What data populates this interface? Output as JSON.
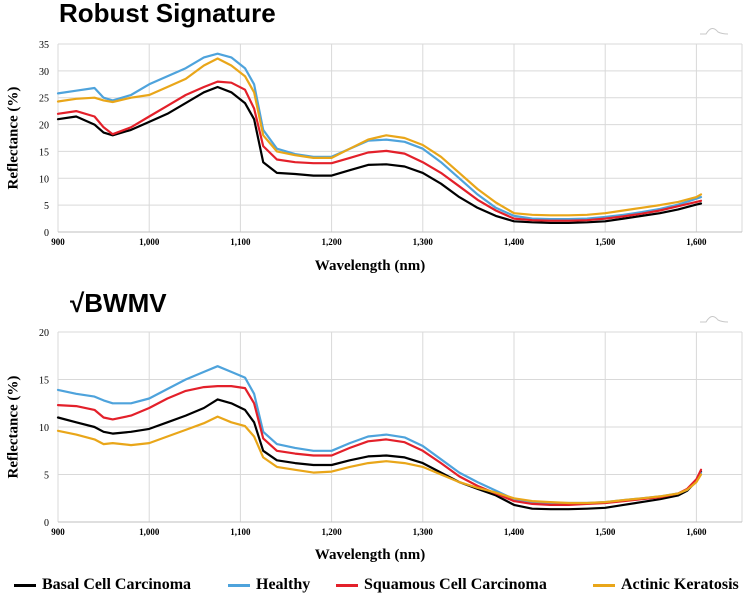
{
  "chart_data": [
    {
      "type": "line",
      "title": "Robust Signature",
      "xlabel": "Wavelength (nm)",
      "ylabel": "Reflectance (%)",
      "xlim": [
        900,
        1650
      ],
      "ylim": [
        0,
        35
      ],
      "xticks": [
        "900",
        "1,000",
        "1,100",
        "1,200",
        "1,300",
        "1,400",
        "1,500",
        "1,600"
      ],
      "yticks": [
        "0",
        "5",
        "10",
        "15",
        "20",
        "25",
        "30",
        "35"
      ],
      "grid": true,
      "series": [
        {
          "name": "Basal Cell Carcinoma",
          "color": "#000000",
          "x": [
            900,
            920,
            940,
            950,
            960,
            980,
            1000,
            1020,
            1040,
            1060,
            1075,
            1090,
            1105,
            1115,
            1125,
            1140,
            1160,
            1180,
            1200,
            1220,
            1240,
            1260,
            1280,
            1300,
            1320,
            1340,
            1360,
            1380,
            1400,
            1420,
            1440,
            1460,
            1480,
            1500,
            1520,
            1540,
            1560,
            1580,
            1600,
            1605
          ],
          "y": [
            21,
            21.5,
            20,
            18.5,
            18,
            19,
            20.5,
            22,
            24,
            26,
            27,
            26,
            24,
            21,
            13,
            11,
            10.8,
            10.5,
            10.5,
            11.5,
            12.5,
            12.6,
            12.2,
            11,
            9,
            6.5,
            4.5,
            3,
            2,
            1.8,
            1.7,
            1.7,
            1.8,
            2,
            2.5,
            3,
            3.5,
            4.2,
            5.1,
            5.3
          ]
        },
        {
          "name": "Healthy",
          "color": "#4ea3dc",
          "x": [
            900,
            920,
            940,
            950,
            960,
            980,
            1000,
            1020,
            1040,
            1060,
            1075,
            1090,
            1105,
            1115,
            1125,
            1140,
            1160,
            1180,
            1200,
            1220,
            1240,
            1260,
            1280,
            1300,
            1320,
            1340,
            1360,
            1380,
            1400,
            1420,
            1440,
            1460,
            1480,
            1500,
            1520,
            1540,
            1560,
            1580,
            1600,
            1605
          ],
          "y": [
            25.8,
            26.3,
            26.8,
            25,
            24.5,
            25.5,
            27.5,
            29,
            30.5,
            32.5,
            33.2,
            32.5,
            30.5,
            27.5,
            19,
            15.5,
            14.5,
            14,
            14,
            15.5,
            17,
            17.2,
            16.8,
            15.5,
            13,
            10,
            7,
            4.5,
            3,
            2.5,
            2.4,
            2.4,
            2.5,
            2.8,
            3.2,
            3.7,
            4.3,
            5.1,
            6.2,
            6.5
          ]
        },
        {
          "name": "Squamous Cell Carcinoma",
          "color": "#e3202a",
          "x": [
            900,
            920,
            940,
            950,
            960,
            980,
            1000,
            1020,
            1040,
            1060,
            1075,
            1090,
            1105,
            1115,
            1125,
            1140,
            1160,
            1180,
            1200,
            1220,
            1240,
            1260,
            1280,
            1300,
            1320,
            1340,
            1360,
            1380,
            1400,
            1420,
            1440,
            1460,
            1480,
            1500,
            1520,
            1540,
            1560,
            1580,
            1600,
            1605
          ],
          "y": [
            22,
            22.5,
            21.5,
            19.5,
            18.2,
            19.5,
            21.5,
            23.5,
            25.5,
            27,
            28,
            27.8,
            26.5,
            23,
            16,
            13.5,
            13,
            12.8,
            12.8,
            13.8,
            14.8,
            15.1,
            14.6,
            13,
            11,
            8.5,
            6,
            4,
            2.5,
            2.2,
            2.1,
            2.1,
            2.2,
            2.5,
            2.9,
            3.4,
            4,
            4.8,
            5.6,
            5.8
          ]
        },
        {
          "name": "Actinic Keratosis",
          "color": "#e9a619",
          "x": [
            900,
            920,
            940,
            950,
            960,
            980,
            1000,
            1020,
            1040,
            1060,
            1075,
            1090,
            1105,
            1115,
            1125,
            1140,
            1160,
            1180,
            1200,
            1220,
            1240,
            1260,
            1280,
            1300,
            1320,
            1340,
            1360,
            1380,
            1400,
            1420,
            1440,
            1460,
            1480,
            1500,
            1520,
            1540,
            1560,
            1580,
            1600,
            1605
          ],
          "y": [
            24.3,
            24.8,
            25,
            24.5,
            24.2,
            25,
            25.5,
            27,
            28.5,
            31,
            32.3,
            31,
            29,
            26,
            18,
            15,
            14.3,
            13.8,
            13.8,
            15.5,
            17.2,
            18,
            17.5,
            16.2,
            14,
            11,
            8,
            5.5,
            3.5,
            3.2,
            3.1,
            3.1,
            3.2,
            3.5,
            4,
            4.5,
            5,
            5.6,
            6.5,
            7
          ]
        }
      ]
    },
    {
      "type": "line",
      "title": "√BWMV",
      "xlabel": "Wavelength (nm)",
      "ylabel": "Reflectance (%)",
      "xlim": [
        900,
        1650
      ],
      "ylim": [
        0,
        20
      ],
      "xticks": [
        "900",
        "1,000",
        "1,100",
        "1,200",
        "1,300",
        "1,400",
        "1,500",
        "1,600"
      ],
      "yticks": [
        "0",
        "5",
        "10",
        "15",
        "20"
      ],
      "grid": true,
      "series": [
        {
          "name": "Basal Cell Carcinoma",
          "color": "#000000",
          "x": [
            900,
            920,
            940,
            950,
            960,
            980,
            1000,
            1020,
            1040,
            1060,
            1075,
            1090,
            1105,
            1115,
            1125,
            1140,
            1160,
            1180,
            1200,
            1220,
            1240,
            1260,
            1280,
            1300,
            1320,
            1340,
            1360,
            1380,
            1400,
            1420,
            1440,
            1460,
            1480,
            1500,
            1520,
            1540,
            1560,
            1580,
            1590,
            1600,
            1605
          ],
          "y": [
            11,
            10.5,
            10,
            9.5,
            9.3,
            9.5,
            9.8,
            10.5,
            11.2,
            12,
            12.9,
            12.5,
            11.8,
            10.5,
            7.5,
            6.5,
            6.2,
            6,
            6,
            6.5,
            6.9,
            7,
            6.8,
            6.2,
            5.2,
            4.2,
            3.5,
            2.8,
            1.8,
            1.4,
            1.35,
            1.35,
            1.4,
            1.5,
            1.8,
            2.1,
            2.4,
            2.8,
            3.3,
            4.3,
            5.3
          ]
        },
        {
          "name": "Healthy",
          "color": "#4ea3dc",
          "x": [
            900,
            920,
            940,
            950,
            960,
            980,
            1000,
            1020,
            1040,
            1060,
            1075,
            1090,
            1105,
            1115,
            1125,
            1140,
            1160,
            1180,
            1200,
            1220,
            1240,
            1260,
            1280,
            1300,
            1320,
            1340,
            1360,
            1380,
            1400,
            1420,
            1440,
            1460,
            1480,
            1500,
            1520,
            1540,
            1560,
            1580,
            1590,
            1600,
            1605
          ],
          "y": [
            13.9,
            13.5,
            13.2,
            12.8,
            12.5,
            12.5,
            13,
            14,
            15,
            15.8,
            16.4,
            15.8,
            15.2,
            13.5,
            9.5,
            8.2,
            7.8,
            7.5,
            7.5,
            8.3,
            9,
            9.2,
            8.9,
            8,
            6.6,
            5.2,
            4.2,
            3.3,
            2.4,
            2.1,
            2.0,
            2.0,
            2.0,
            2.1,
            2.3,
            2.5,
            2.7,
            3.0,
            3.4,
            4.3,
            5.2
          ]
        },
        {
          "name": "Squamous Cell Carcinoma",
          "color": "#e3202a",
          "x": [
            900,
            920,
            940,
            950,
            960,
            980,
            1000,
            1020,
            1040,
            1060,
            1075,
            1090,
            1105,
            1115,
            1125,
            1140,
            1160,
            1180,
            1200,
            1220,
            1240,
            1260,
            1280,
            1300,
            1320,
            1340,
            1360,
            1380,
            1400,
            1420,
            1440,
            1460,
            1480,
            1500,
            1520,
            1540,
            1560,
            1580,
            1590,
            1600,
            1605
          ],
          "y": [
            12.3,
            12.2,
            11.8,
            11,
            10.8,
            11.2,
            12,
            13,
            13.8,
            14.2,
            14.3,
            14.3,
            14.1,
            12.5,
            8.8,
            7.5,
            7.2,
            7,
            7,
            7.8,
            8.5,
            8.7,
            8.4,
            7.5,
            6.2,
            4.8,
            3.8,
            3.0,
            2.2,
            1.9,
            1.8,
            1.8,
            1.9,
            2.0,
            2.2,
            2.4,
            2.6,
            3.0,
            3.5,
            4.5,
            5.5
          ]
        },
        {
          "name": "Actinic Keratosis",
          "color": "#e9a619",
          "x": [
            900,
            920,
            940,
            950,
            960,
            980,
            1000,
            1020,
            1040,
            1060,
            1075,
            1090,
            1105,
            1115,
            1125,
            1140,
            1160,
            1180,
            1200,
            1220,
            1240,
            1260,
            1280,
            1300,
            1320,
            1340,
            1360,
            1380,
            1400,
            1420,
            1440,
            1460,
            1480,
            1500,
            1520,
            1540,
            1560,
            1580,
            1590,
            1600,
            1605
          ],
          "y": [
            9.6,
            9.2,
            8.7,
            8.2,
            8.3,
            8.1,
            8.3,
            9,
            9.7,
            10.4,
            11.1,
            10.5,
            10.1,
            9,
            6.8,
            5.8,
            5.5,
            5.2,
            5.3,
            5.8,
            6.2,
            6.4,
            6.2,
            5.8,
            5.0,
            4.2,
            3.6,
            3.1,
            2.5,
            2.2,
            2.1,
            2.0,
            2.0,
            2.1,
            2.3,
            2.5,
            2.7,
            3.0,
            3.4,
            4.2,
            5.0
          ]
        }
      ]
    }
  ],
  "legend": [
    {
      "label": "Basal Cell Carcinoma",
      "color": "#000000"
    },
    {
      "label": "Healthy",
      "color": "#4ea3dc"
    },
    {
      "label": "Squamous Cell Carcinoma",
      "color": "#e3202a"
    },
    {
      "label": "Actinic Keratosis",
      "color": "#e9a619"
    }
  ]
}
